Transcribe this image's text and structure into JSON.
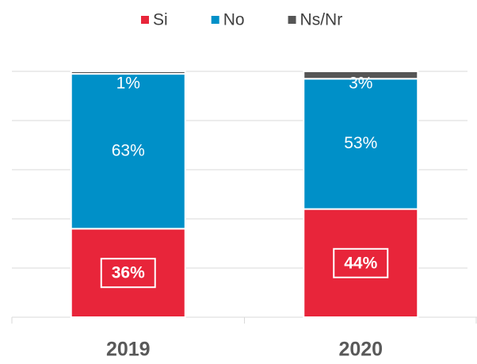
{
  "chart_data": {
    "type": "stacked_bar",
    "categories": [
      "2019",
      "2020"
    ],
    "series": [
      {
        "name": "Si",
        "color": "#e8253a",
        "values": [
          36,
          44
        ],
        "value_labels": [
          "36%",
          "44%"
        ]
      },
      {
        "name": "No",
        "color": "#0090c8",
        "values": [
          63,
          53
        ],
        "value_labels": [
          "63%",
          "53%"
        ]
      },
      {
        "name": "Ns/Nr",
        "color": "#555555",
        "values": [
          1,
          3
        ],
        "value_labels": [
          "1%",
          "3%"
        ]
      }
    ],
    "ylim": [
      0,
      100
    ],
    "yticks": [
      0,
      20,
      40,
      60,
      80,
      100
    ],
    "grid": true,
    "legend": "top"
  }
}
